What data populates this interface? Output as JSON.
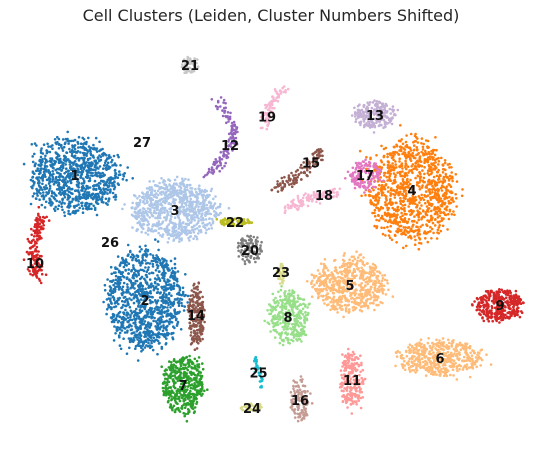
{
  "chart_data": {
    "type": "scatter",
    "title": "Cell Clusters (Leiden, Cluster Numbers Shifted)",
    "xlabel": "",
    "ylabel": "",
    "xlim": [
      0,
      542
    ],
    "ylim": [
      0,
      450
    ],
    "grid": false,
    "axes_visible": false,
    "legend": "none",
    "labels_on_data": true,
    "clusters": [
      {
        "label": "1",
        "color": "#1f77b4",
        "shape": "blob",
        "center": [
          75,
          175
        ],
        "spread": [
          48,
          38
        ],
        "density": 900
      },
      {
        "label": "2",
        "color": "#1f77b4",
        "shape": "blob",
        "center": [
          145,
          300
        ],
        "spread": [
          40,
          52
        ],
        "density": 1000
      },
      {
        "label": "3",
        "color": "#aec7e8",
        "shape": "blob",
        "center": [
          175,
          210
        ],
        "spread": [
          45,
          30
        ],
        "density": 800
      },
      {
        "label": "4",
        "color": "#ff7f0e",
        "shape": "blob",
        "center": [
          412,
          190
        ],
        "spread": [
          45,
          52
        ],
        "density": 1000
      },
      {
        "label": "5",
        "color": "#ffbb78",
        "shape": "blob",
        "center": [
          350,
          285
        ],
        "spread": [
          38,
          28
        ],
        "density": 600
      },
      {
        "label": "6",
        "color": "#ffbb78",
        "shape": "blob",
        "center": [
          440,
          358
        ],
        "spread": [
          45,
          18
        ],
        "density": 450
      },
      {
        "label": "7",
        "color": "#2ca02c",
        "shape": "blob",
        "center": [
          183,
          385
        ],
        "spread": [
          22,
          30
        ],
        "density": 450
      },
      {
        "label": "8",
        "color": "#98df8a",
        "shape": "blob",
        "center": [
          288,
          317
        ],
        "spread": [
          20,
          28
        ],
        "density": 350
      },
      {
        "label": "9",
        "color": "#d62728",
        "shape": "blob",
        "center": [
          500,
          305
        ],
        "spread": [
          25,
          16
        ],
        "density": 350
      },
      {
        "label": "10",
        "color": "#d62728",
        "shape": "strip",
        "points": [
          [
            42,
            215
          ],
          [
            33,
            248
          ],
          [
            37,
            278
          ]
        ],
        "width": 6,
        "density": 160
      },
      {
        "label": "11",
        "color": "#ff9896",
        "shape": "blob",
        "center": [
          352,
          380
        ],
        "spread": [
          12,
          30
        ],
        "density": 220
      },
      {
        "label": "12",
        "color": "#9467bd",
        "shape": "strip",
        "points": [
          [
            218,
            100
          ],
          [
            236,
            132
          ],
          [
            224,
            158
          ],
          [
            205,
            175
          ]
        ],
        "width": 4,
        "density": 140
      },
      {
        "label": "13",
        "color": "#c5b0d5",
        "shape": "blob",
        "center": [
          375,
          115
        ],
        "spread": [
          22,
          14
        ],
        "density": 220
      },
      {
        "label": "14",
        "color": "#8c564b",
        "shape": "blob",
        "center": [
          196,
          315
        ],
        "spread": [
          8,
          32
        ],
        "density": 200
      },
      {
        "label": "15",
        "color": "#8c564b",
        "shape": "strip",
        "points": [
          [
            275,
            190
          ],
          [
            300,
            175
          ],
          [
            322,
            150
          ]
        ],
        "width": 5,
        "density": 120
      },
      {
        "label": "16",
        "color": "#c49c94",
        "shape": "blob",
        "center": [
          300,
          400
        ],
        "spread": [
          10,
          22
        ],
        "density": 120
      },
      {
        "label": "17",
        "color": "#e377c2",
        "shape": "blob",
        "center": [
          365,
          175
        ],
        "spread": [
          16,
          16
        ],
        "density": 140
      },
      {
        "label": "18",
        "color": "#f7b6d2",
        "shape": "strip",
        "points": [
          [
            285,
            210
          ],
          [
            310,
            198
          ],
          [
            338,
            192
          ]
        ],
        "width": 5,
        "density": 110
      },
      {
        "label": "19",
        "color": "#f7b6d2",
        "shape": "strip",
        "points": [
          [
            283,
            88
          ],
          [
            270,
            105
          ],
          [
            264,
            128
          ]
        ],
        "width": 4,
        "density": 80
      },
      {
        "label": "20",
        "color": "#7f7f7f",
        "shape": "blob",
        "center": [
          250,
          250
        ],
        "spread": [
          14,
          14
        ],
        "density": 90
      },
      {
        "label": "21",
        "color": "#c7c7c7",
        "shape": "blob",
        "center": [
          190,
          65
        ],
        "spread": [
          9,
          9
        ],
        "density": 60
      },
      {
        "label": "22",
        "color": "#bcbd22",
        "shape": "blob",
        "center": [
          235,
          222
        ],
        "spread": [
          18,
          4
        ],
        "density": 80
      },
      {
        "label": "23",
        "color": "#dbdb8d",
        "shape": "blob",
        "center": [
          281,
          272
        ],
        "spread": [
          4,
          12
        ],
        "density": 40
      },
      {
        "label": "24",
        "color": "#dbdb8d",
        "shape": "blob",
        "center": [
          252,
          408
        ],
        "spread": [
          12,
          4
        ],
        "density": 40
      },
      {
        "label": "25",
        "color": "#17becf",
        "shape": "strip",
        "points": [
          [
            255,
            357
          ],
          [
            262,
            388
          ]
        ],
        "width": 2,
        "density": 30
      },
      {
        "label": "26",
        "color": "#aec7e8",
        "shape": "none",
        "center": [
          110,
          242
        ],
        "spread": [
          0,
          0
        ],
        "density": 0
      },
      {
        "label": "27",
        "color": "#9467bd",
        "shape": "none",
        "center": [
          142,
          142
        ],
        "spread": [
          0,
          0
        ],
        "density": 0
      }
    ]
  }
}
